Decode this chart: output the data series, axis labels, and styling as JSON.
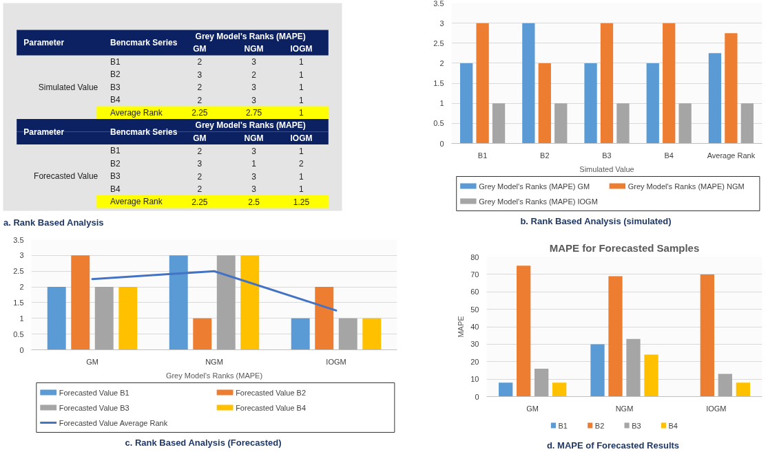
{
  "chart_data": [
    {
      "type": "other",
      "title": "a. Rank Based Analysis",
      "annotations": [
        "Parameter  Bencmark Series  Grey Model's Ranks (MAPE)",
        "GM  NGM  IOGM",
        "B1  2  3  1",
        "B2  3  2  1",
        "Simulated Value  B3  2  3  1",
        "B4  2  3  1",
        "Average Rank  2.25  2.75  1",
        "Parameter  Bencmark Series  Grey Model's Ranks (MAPE)",
        "GM  NGM  IOGM",
        "B1  2  3  1",
        "B2  3  1  2",
        "Forecasted Value  B3  2  3  1",
        "B4  2  3  1",
        "Average Rank  2.25  2.5  1.25"
      ]
    },
    {
      "type": "bar",
      "categories": [
        "B1",
        "B2",
        "B3",
        "B4",
        "Average Rank"
      ],
      "xlabel": "Simulated Value",
      "ylim": [
        0,
        3.5
      ],
      "yticks": [
        0,
        0.5,
        1,
        1.5,
        2,
        2.5,
        3,
        3.5
      ],
      "grid": "y",
      "legend": "bottom",
      "annotations": [
        "b. Rank Based Analysis (simulated)"
      ],
      "series": [
        {
          "name": "Grey Model's Ranks (MAPE) GM",
          "color": "#5b9bd5",
          "values": [
            2,
            3,
            2,
            2,
            2.25
          ]
        },
        {
          "name": "Grey Model's Ranks (MAPE) NGM",
          "color": "#ed7d31",
          "values": [
            3,
            2,
            3,
            3,
            2.75
          ]
        },
        {
          "name": "Grey Model's Ranks (MAPE) IOGM",
          "color": "#a5a5a5",
          "values": [
            1,
            1,
            1,
            1,
            1
          ]
        }
      ]
    },
    {
      "type": "bar",
      "categories": [
        "GM",
        "NGM",
        "IOGM"
      ],
      "xlabel": "Grey Model's Ranks (MAPE)",
      "ylim": [
        0,
        3.5
      ],
      "yticks": [
        0,
        0.5,
        1,
        1.5,
        2,
        2.5,
        3,
        3.5
      ],
      "grid": "y",
      "legend": "bottom",
      "annotations": [
        "c. Rank Based Analysis (Forecasted)"
      ],
      "series": [
        {
          "name": "Forecasted Value B1",
          "color": "#5b9bd5",
          "values": [
            2,
            3,
            1
          ]
        },
        {
          "name": "Forecasted Value B2",
          "color": "#ed7d31",
          "values": [
            3,
            1,
            2
          ]
        },
        {
          "name": "Forecasted Value B3",
          "color": "#a5a5a5",
          "values": [
            2,
            3,
            1
          ]
        },
        {
          "name": "Forecasted Value B4",
          "color": "#ffc000",
          "values": [
            2,
            3,
            1
          ]
        },
        {
          "name": "Forecasted Value Average Rank",
          "color": "#4472c4",
          "type": "line",
          "values": [
            2.25,
            2.5,
            1.25
          ]
        }
      ]
    },
    {
      "type": "bar",
      "title": "MAPE for Forecasted Samples",
      "categories": [
        "GM",
        "NGM",
        "IOGM"
      ],
      "ylabel": "MAPE",
      "ylim": [
        0,
        80
      ],
      "yticks": [
        0,
        10,
        20,
        30,
        40,
        50,
        60,
        70,
        80
      ],
      "grid": "y",
      "legend": "bottom",
      "annotations": [
        "d. MAPE of Forecasted Results"
      ],
      "series": [
        {
          "name": "B1",
          "color": "#5b9bd5",
          "values": [
            8,
            30,
            0
          ]
        },
        {
          "name": "B2",
          "color": "#ed7d31",
          "values": [
            75,
            69,
            70
          ]
        },
        {
          "name": "B3",
          "color": "#a5a5a5",
          "values": [
            16,
            33,
            13
          ]
        },
        {
          "name": "B4",
          "color": "#ffc000",
          "values": [
            8,
            24,
            8
          ]
        }
      ]
    }
  ]
}
